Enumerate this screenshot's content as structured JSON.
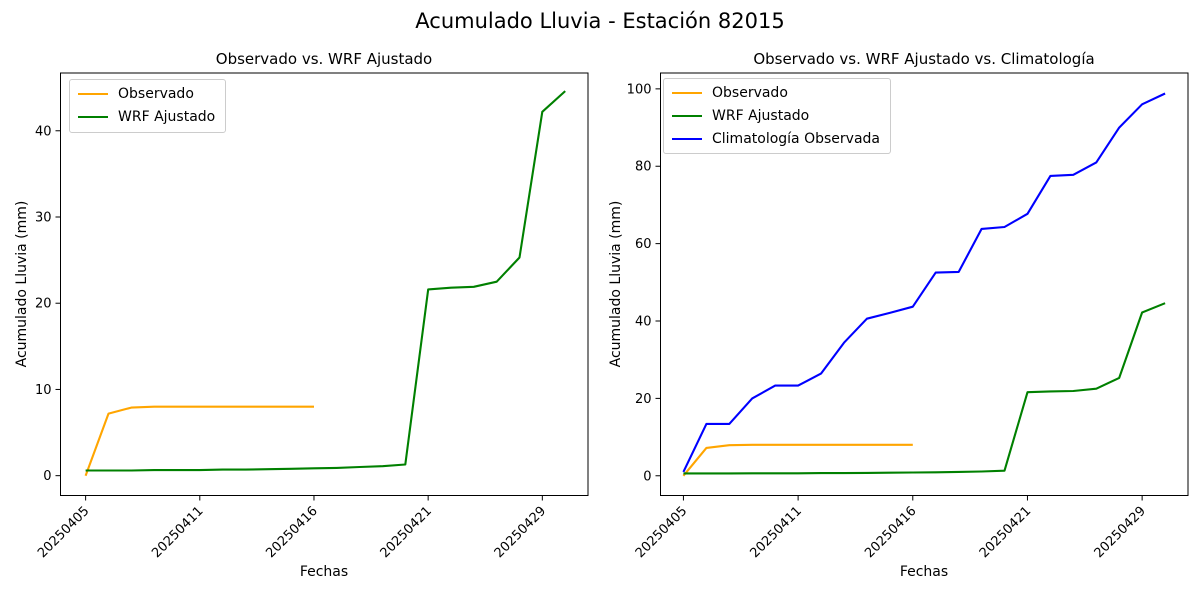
{
  "figure": {
    "suptitle": "Acumulado Lluvia - Estación 82015",
    "background": "#ffffff"
  },
  "chart_data": [
    {
      "type": "line",
      "title": "Observado vs. WRF Ajustado",
      "xlabel": "Fechas",
      "ylabel": "Acumulado Lluvia (mm)",
      "x_tick_labels": [
        "20250405",
        "20250411",
        "20250416",
        "20250421",
        "20250429"
      ],
      "x_tick_indices": [
        0,
        5,
        10,
        15,
        20
      ],
      "x_tick_rotation": 45,
      "n_points": 22,
      "y_ticks": [
        0,
        10,
        20,
        30,
        40
      ],
      "ylim": [
        -2.3,
        46.7
      ],
      "xlim": [
        -1.1,
        22.0
      ],
      "grid": false,
      "legend_position": "upper left",
      "series": [
        {
          "name": "Observado",
          "color": "#FFA500",
          "values": [
            0,
            7.2,
            7.9,
            8,
            8,
            8,
            8,
            8,
            8,
            8,
            8,
            null,
            null,
            null,
            null,
            null,
            null,
            null,
            null,
            null,
            null,
            null
          ]
        },
        {
          "name": "WRF Ajustado",
          "color": "#008000",
          "values": [
            0.6,
            0.6,
            0.6,
            0.65,
            0.65,
            0.65,
            0.7,
            0.7,
            0.75,
            0.8,
            0.85,
            0.9,
            1.0,
            1.1,
            1.3,
            21.6,
            21.8,
            21.9,
            22.5,
            25.3,
            42.2,
            44.6
          ]
        }
      ]
    },
    {
      "type": "line",
      "title": "Observado vs. WRF Ajustado vs. Climatología",
      "xlabel": "Fechas",
      "ylabel": "Acumulado Lluvia (mm)",
      "x_tick_labels": [
        "20250405",
        "20250411",
        "20250416",
        "20250421",
        "20250429"
      ],
      "x_tick_indices": [
        0,
        5,
        10,
        15,
        20
      ],
      "x_tick_rotation": 45,
      "n_points": 22,
      "y_ticks": [
        0,
        20,
        40,
        60,
        80,
        100
      ],
      "ylim": [
        -5.1,
        104.1
      ],
      "xlim": [
        -1.0,
        22.0
      ],
      "grid": false,
      "legend_position": "upper left",
      "series": [
        {
          "name": "Observado",
          "color": "#FFA500",
          "values": [
            0,
            7.2,
            7.9,
            8,
            8,
            8,
            8,
            8,
            8,
            8,
            8,
            null,
            null,
            null,
            null,
            null,
            null,
            null,
            null,
            null,
            null,
            null
          ]
        },
        {
          "name": "WRF Ajustado",
          "color": "#008000",
          "values": [
            0.6,
            0.6,
            0.6,
            0.65,
            0.65,
            0.65,
            0.7,
            0.7,
            0.75,
            0.8,
            0.85,
            0.9,
            1.0,
            1.1,
            1.3,
            21.6,
            21.8,
            21.9,
            22.5,
            25.3,
            42.2,
            44.6
          ]
        },
        {
          "name": "Climatología Observada",
          "color": "#0000FF",
          "values": [
            1,
            13.4,
            13.4,
            20,
            23.3,
            23.3,
            26.4,
            34.4,
            40.6,
            42.1,
            43.7,
            52.5,
            52.7,
            63.8,
            64.3,
            67.7,
            77.5,
            77.8,
            81,
            90,
            96,
            98.8
          ]
        }
      ]
    }
  ]
}
